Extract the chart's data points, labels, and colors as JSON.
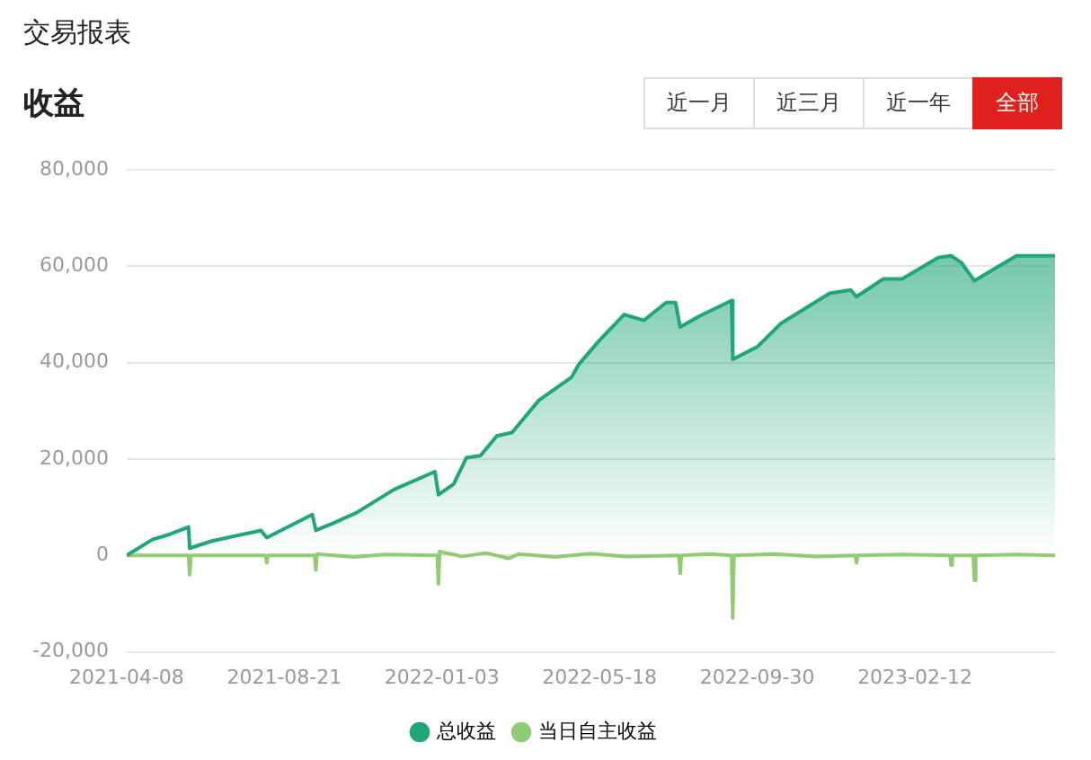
{
  "chart_data": {
    "type": "line",
    "title": "交易报表",
    "subtitle": "收益",
    "annotations": [
      "近一月",
      "近三月",
      "近一年",
      "全部"
    ],
    "xlim": [
      "2021-04-08",
      "2023-06-12"
    ],
    "xticks": [
      "2021-04-08",
      "2021-08-21",
      "2022-01-03",
      "2022-05-18",
      "2022-09-30",
      "2023-02-12"
    ],
    "ylim": [
      -20000,
      80000
    ],
    "yticks": [
      {
        "value": -20000,
        "label": "-20,000"
      },
      0,
      {
        "value": 20000,
        "label": "20,000"
      },
      {
        "value": 40000,
        "label": "40,000"
      },
      {
        "value": 60000,
        "label": "60,000"
      },
      {
        "value": 80000,
        "label": "80,000"
      }
    ],
    "grid": "y",
    "legend": "bottom",
    "marker": "none",
    "series": [
      {
        "name": "总收益",
        "type": "area",
        "color": "#1fa67a",
        "x": [
          "2021-04-08",
          "2021-04-30",
          "2021-05-15",
          "2021-05-31",
          "2021-06-01",
          "2021-06-20",
          "2021-08-01",
          "2021-08-06",
          "2021-09-14",
          "2021-09-17",
          "2021-10-02",
          "2021-10-22",
          "2021-11-23",
          "2021-12-28",
          "2021-12-31",
          "2022-01-13",
          "2022-01-24",
          "2022-02-05",
          "2022-02-19",
          "2022-03-04",
          "2022-03-27",
          "2022-04-24",
          "2022-04-30",
          "2022-05-17",
          "2022-06-08",
          "2022-06-25",
          "2022-07-14",
          "2022-07-22",
          "2022-07-26",
          "2022-08-11",
          "2022-09-08",
          "2022-09-09",
          "2022-09-30",
          "2022-10-20",
          "2022-12-01",
          "2022-12-19",
          "2022-12-24",
          "2023-01-16",
          "2023-02-01",
          "2023-03-04",
          "2023-03-15",
          "2023-03-24",
          "2023-04-04",
          "2023-04-24",
          "2023-05-10",
          "2023-06-12"
        ],
        "values": [
          0,
          3300,
          4400,
          5900,
          1500,
          3000,
          5200,
          3700,
          8500,
          5200,
          6700,
          8900,
          13700,
          17400,
          12600,
          14800,
          20300,
          20700,
          24800,
          25500,
          32200,
          37000,
          39600,
          44400,
          50000,
          48800,
          52500,
          52500,
          47400,
          49600,
          52900,
          40700,
          43300,
          48100,
          54400,
          55100,
          53700,
          57400,
          57400,
          61800,
          62200,
          60700,
          57000,
          59900,
          62200,
          62200
        ]
      },
      {
        "name": "当日自主收益",
        "color": "#91cc75",
        "x": [
          "2021-04-08",
          "2021-05-31",
          "2021-06-01",
          "2021-06-02",
          "2021-08-05",
          "2021-08-06",
          "2021-08-07",
          "2021-09-16",
          "2021-09-17",
          "2021-09-18",
          "2021-10-20",
          "2021-11-15",
          "2021-12-30",
          "2021-12-31",
          "2022-01-01",
          "2022-01-20",
          "2022-02-10",
          "2022-03-01",
          "2022-03-10",
          "2022-04-10",
          "2022-05-10",
          "2022-06-10",
          "2022-07-25",
          "2022-07-26",
          "2022-07-27",
          "2022-08-20",
          "2022-09-08",
          "2022-09-09",
          "2022-09-10",
          "2022-10-15",
          "2022-11-20",
          "2022-12-23",
          "2022-12-24",
          "2022-12-25",
          "2023-02-01",
          "2023-03-14",
          "2023-03-15",
          "2023-03-16",
          "2023-04-03",
          "2023-04-04",
          "2023-04-05",
          "2023-05-10",
          "2023-06-12"
        ],
        "values": [
          0,
          0,
          -4000,
          0,
          0,
          -1500,
          0,
          0,
          -3000,
          300,
          -300,
          200,
          0,
          -5900,
          800,
          -200,
          500,
          -600,
          300,
          -300,
          400,
          -200,
          0,
          -3700,
          0,
          300,
          0,
          -13000,
          0,
          300,
          -200,
          0,
          -1500,
          0,
          200,
          0,
          -2000,
          0,
          0,
          -5200,
          0,
          200,
          0
        ]
      }
    ]
  }
}
